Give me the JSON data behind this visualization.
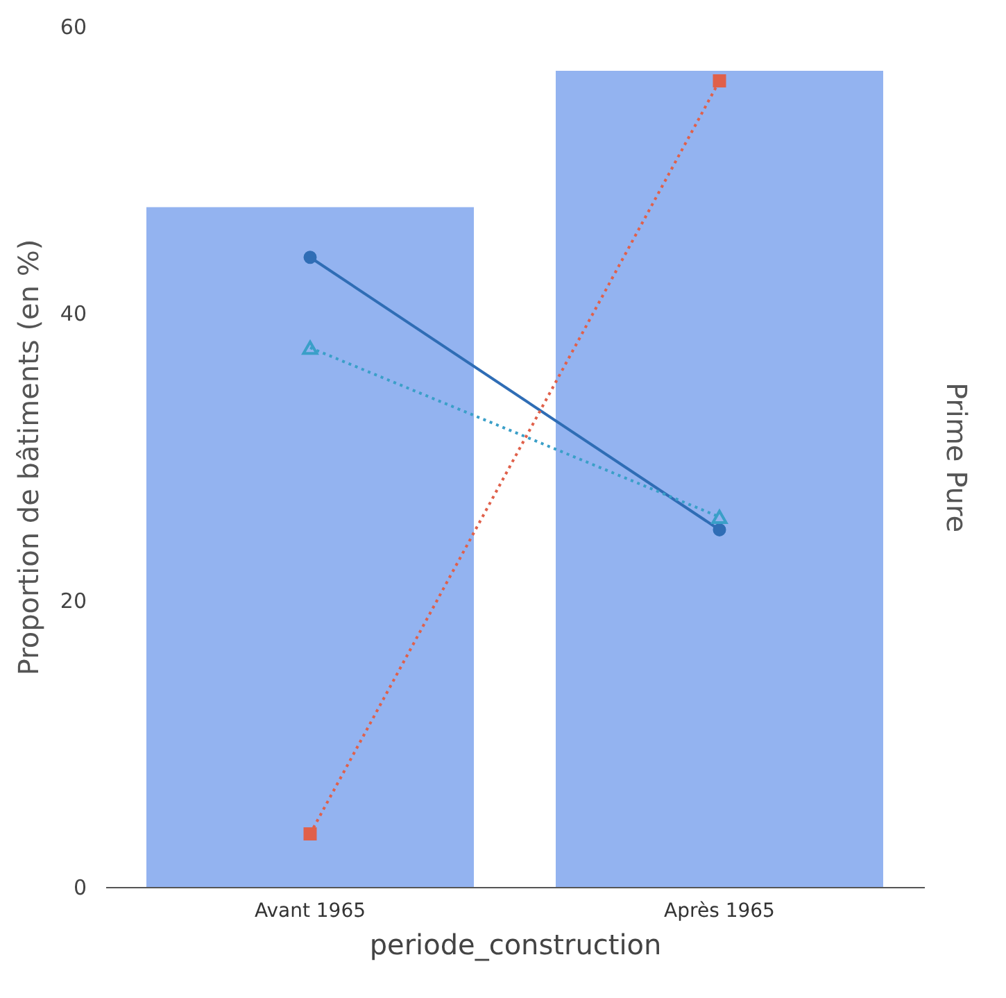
{
  "chart_data": {
    "type": "bar",
    "categories": [
      "Avant 1965",
      "Après 1965"
    ],
    "xlabel": "periode_construction",
    "ylabel": "Proportion de bâtiments (en %)",
    "y2label": "Prime Pure",
    "ylim": [
      0,
      60
    ],
    "yticks": [
      0,
      20,
      40,
      60
    ],
    "series": [
      {
        "color": "#93b3f0",
        "values": [
          47.4,
          56.9
        ]
      },
      {
        "type": "line",
        "color": "#2f6db5",
        "marker": "circle",
        "line_style": "solid",
        "values": [
          43.9,
          24.9
        ]
      },
      {
        "type": "line",
        "color": "#3a9fc8",
        "marker": "triangle",
        "line_style": "dotted",
        "values": [
          37.6,
          25.8
        ]
      },
      {
        "type": "line",
        "color": "#e0604a",
        "marker": "square",
        "line_style": "dotted",
        "values": [
          3.7,
          56.2
        ]
      }
    ]
  }
}
